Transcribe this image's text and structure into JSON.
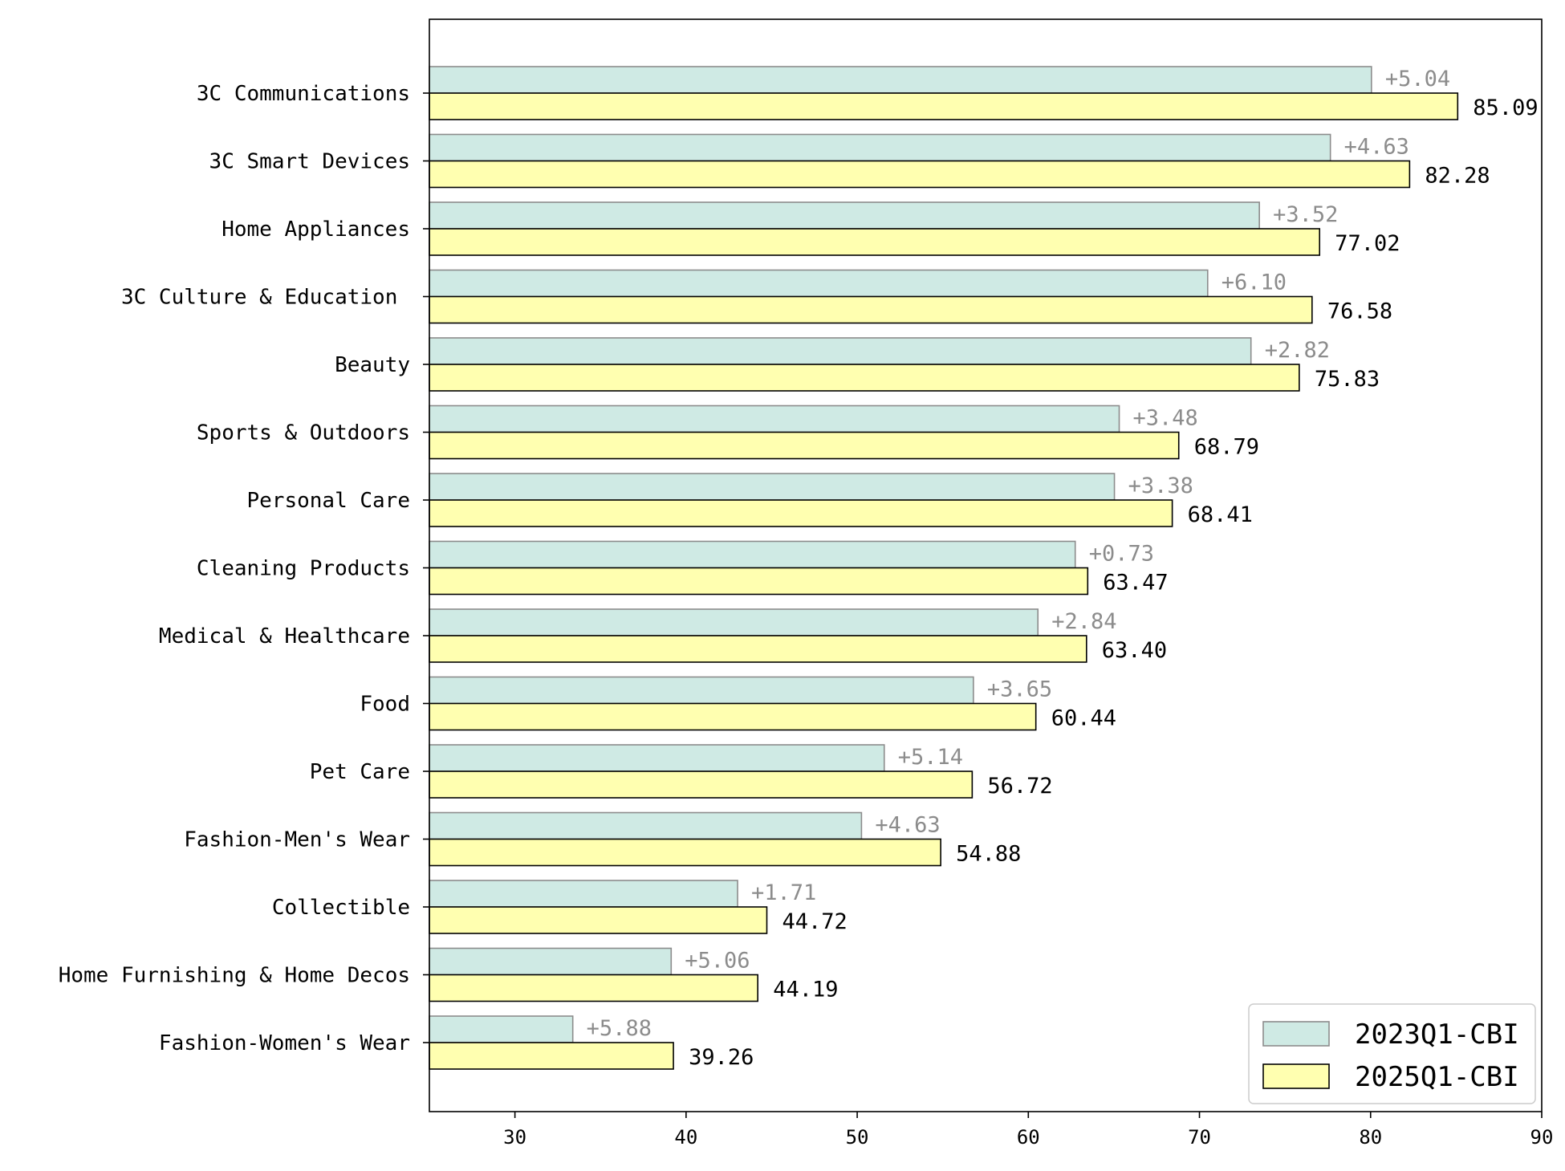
{
  "chart_data": {
    "type": "bar",
    "orientation": "horizontal",
    "categories": [
      "3C Communications",
      "3C Smart Devices",
      "Home Appliances",
      "3C Culture & Education ",
      "Beauty",
      "Sports & Outdoors",
      "Personal Care",
      "Cleaning Products",
      "Medical & Healthcare",
      "Food",
      "Pet Care",
      "Fashion-Men's Wear",
      "Collectible",
      "Home Furnishing & Home Decos",
      "Fashion-Women's Wear"
    ],
    "series": [
      {
        "name": "2023Q1-CBI",
        "color": "#cfeae4",
        "edge": "#8c8c8c",
        "values": [
          80.05,
          77.65,
          73.5,
          70.48,
          73.01,
          65.31,
          65.03,
          62.74,
          60.56,
          56.79,
          51.58,
          50.25,
          43.01,
          39.13,
          33.38
        ]
      },
      {
        "name": "2025Q1-CBI",
        "color": "#ffffb0",
        "edge": "#000000",
        "values": [
          85.09,
          82.28,
          77.02,
          76.58,
          75.83,
          68.79,
          68.41,
          63.47,
          63.4,
          60.44,
          56.72,
          54.88,
          44.72,
          44.19,
          39.26
        ]
      }
    ],
    "value_labels": [
      "85.09",
      "82.28",
      "77.02",
      "76.58",
      "75.83",
      "68.79",
      "68.41",
      "63.47",
      "63.40",
      "60.44",
      "56.72",
      "54.88",
      "44.72",
      "44.19",
      "39.26"
    ],
    "diff_labels": [
      "+5.04",
      "+4.63",
      "+3.52",
      "+6.10",
      "+2.82",
      "+3.48",
      "+3.38",
      "+0.73",
      "+2.84",
      "+3.65",
      "+5.14",
      "+4.63",
      "+1.71",
      "+5.06",
      "+5.88"
    ],
    "xlim": [
      25,
      90
    ],
    "xticks": [
      30,
      40,
      50,
      60,
      70,
      80,
      90
    ],
    "xtick_labels": [
      "30",
      "40",
      "50",
      "60",
      "70",
      "80",
      "90"
    ],
    "grid": false,
    "legend_position": "bottom-right",
    "title": "",
    "xlabel": "",
    "ylabel": ""
  }
}
